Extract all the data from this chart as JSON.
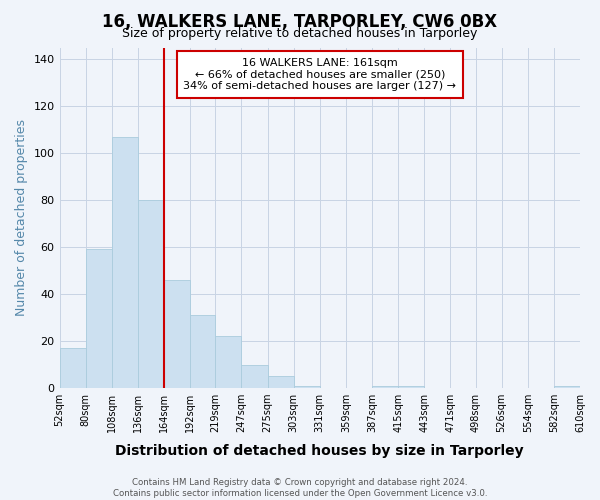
{
  "title": "16, WALKERS LANE, TARPORLEY, CW6 0BX",
  "subtitle": "Size of property relative to detached houses in Tarporley",
  "xlabel": "Distribution of detached houses by size in Tarporley",
  "ylabel": "Number of detached properties",
  "bar_edges": [
    52,
    80,
    108,
    136,
    164,
    192,
    219,
    247,
    275,
    303,
    331,
    359,
    387,
    415,
    443,
    471,
    498,
    526,
    554,
    582,
    610
  ],
  "bar_heights": [
    17,
    59,
    107,
    80,
    46,
    31,
    22,
    10,
    5,
    1,
    0,
    0,
    1,
    1,
    0,
    0,
    0,
    0,
    0,
    1
  ],
  "bar_color": "#cce0f0",
  "bar_edgecolor": "#aaccdd",
  "property_line_x": 164,
  "property_line_color": "#cc0000",
  "annotation_line1": "16 WALKERS LANE: 161sqm",
  "annotation_line2": "← 66% of detached houses are smaller (250)",
  "annotation_line3": "34% of semi-detached houses are larger (127) →",
  "annotation_box_facecolor": "white",
  "annotation_box_edgecolor": "#cc0000",
  "ylim": [
    0,
    145
  ],
  "yticks": [
    0,
    20,
    40,
    60,
    80,
    100,
    120,
    140
  ],
  "footer_text": "Contains HM Land Registry data © Crown copyright and database right 2024.\nContains public sector information licensed under the Open Government Licence v3.0.",
  "background_color": "#f0f4fa",
  "grid_color": "#c8d4e4",
  "title_fontsize": 12,
  "subtitle_fontsize": 9,
  "xlabel_fontsize": 10,
  "ylabel_fontsize": 9,
  "ylabel_color": "#5588aa",
  "xtick_fontsize": 7,
  "ytick_fontsize": 8,
  "annotation_fontsize": 8
}
